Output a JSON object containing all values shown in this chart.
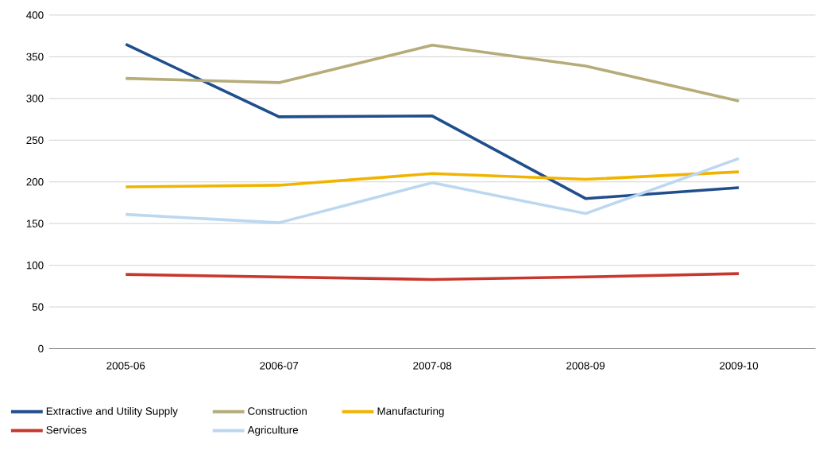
{
  "chart_data": {
    "type": "line",
    "categories": [
      "2005-06",
      "2006-07",
      "2007-08",
      "2008-09",
      "2009-10"
    ],
    "series": [
      {
        "name": "Extractive and Utility Supply",
        "color": "#1f4e8c",
        "values": [
          365,
          278,
          279,
          180,
          193
        ]
      },
      {
        "name": "Construction",
        "color": "#b5ac7a",
        "values": [
          324,
          319,
          364,
          339,
          297
        ]
      },
      {
        "name": "Manufacturing",
        "color": "#f0b400",
        "values": [
          194,
          196,
          210,
          203,
          212
        ]
      },
      {
        "name": "Services",
        "color": "#c8372d",
        "values": [
          89,
          86,
          83,
          86,
          90
        ]
      },
      {
        "name": "Agriculture",
        "color": "#bcd7f0",
        "values": [
          161,
          151,
          199,
          162,
          228
        ]
      }
    ],
    "ylim": [
      0,
      400
    ],
    "yticks": [
      0,
      50,
      100,
      150,
      200,
      250,
      300,
      350,
      400
    ],
    "grid": "y",
    "legend": "bottom",
    "marker": "none",
    "line_style": "solid"
  }
}
